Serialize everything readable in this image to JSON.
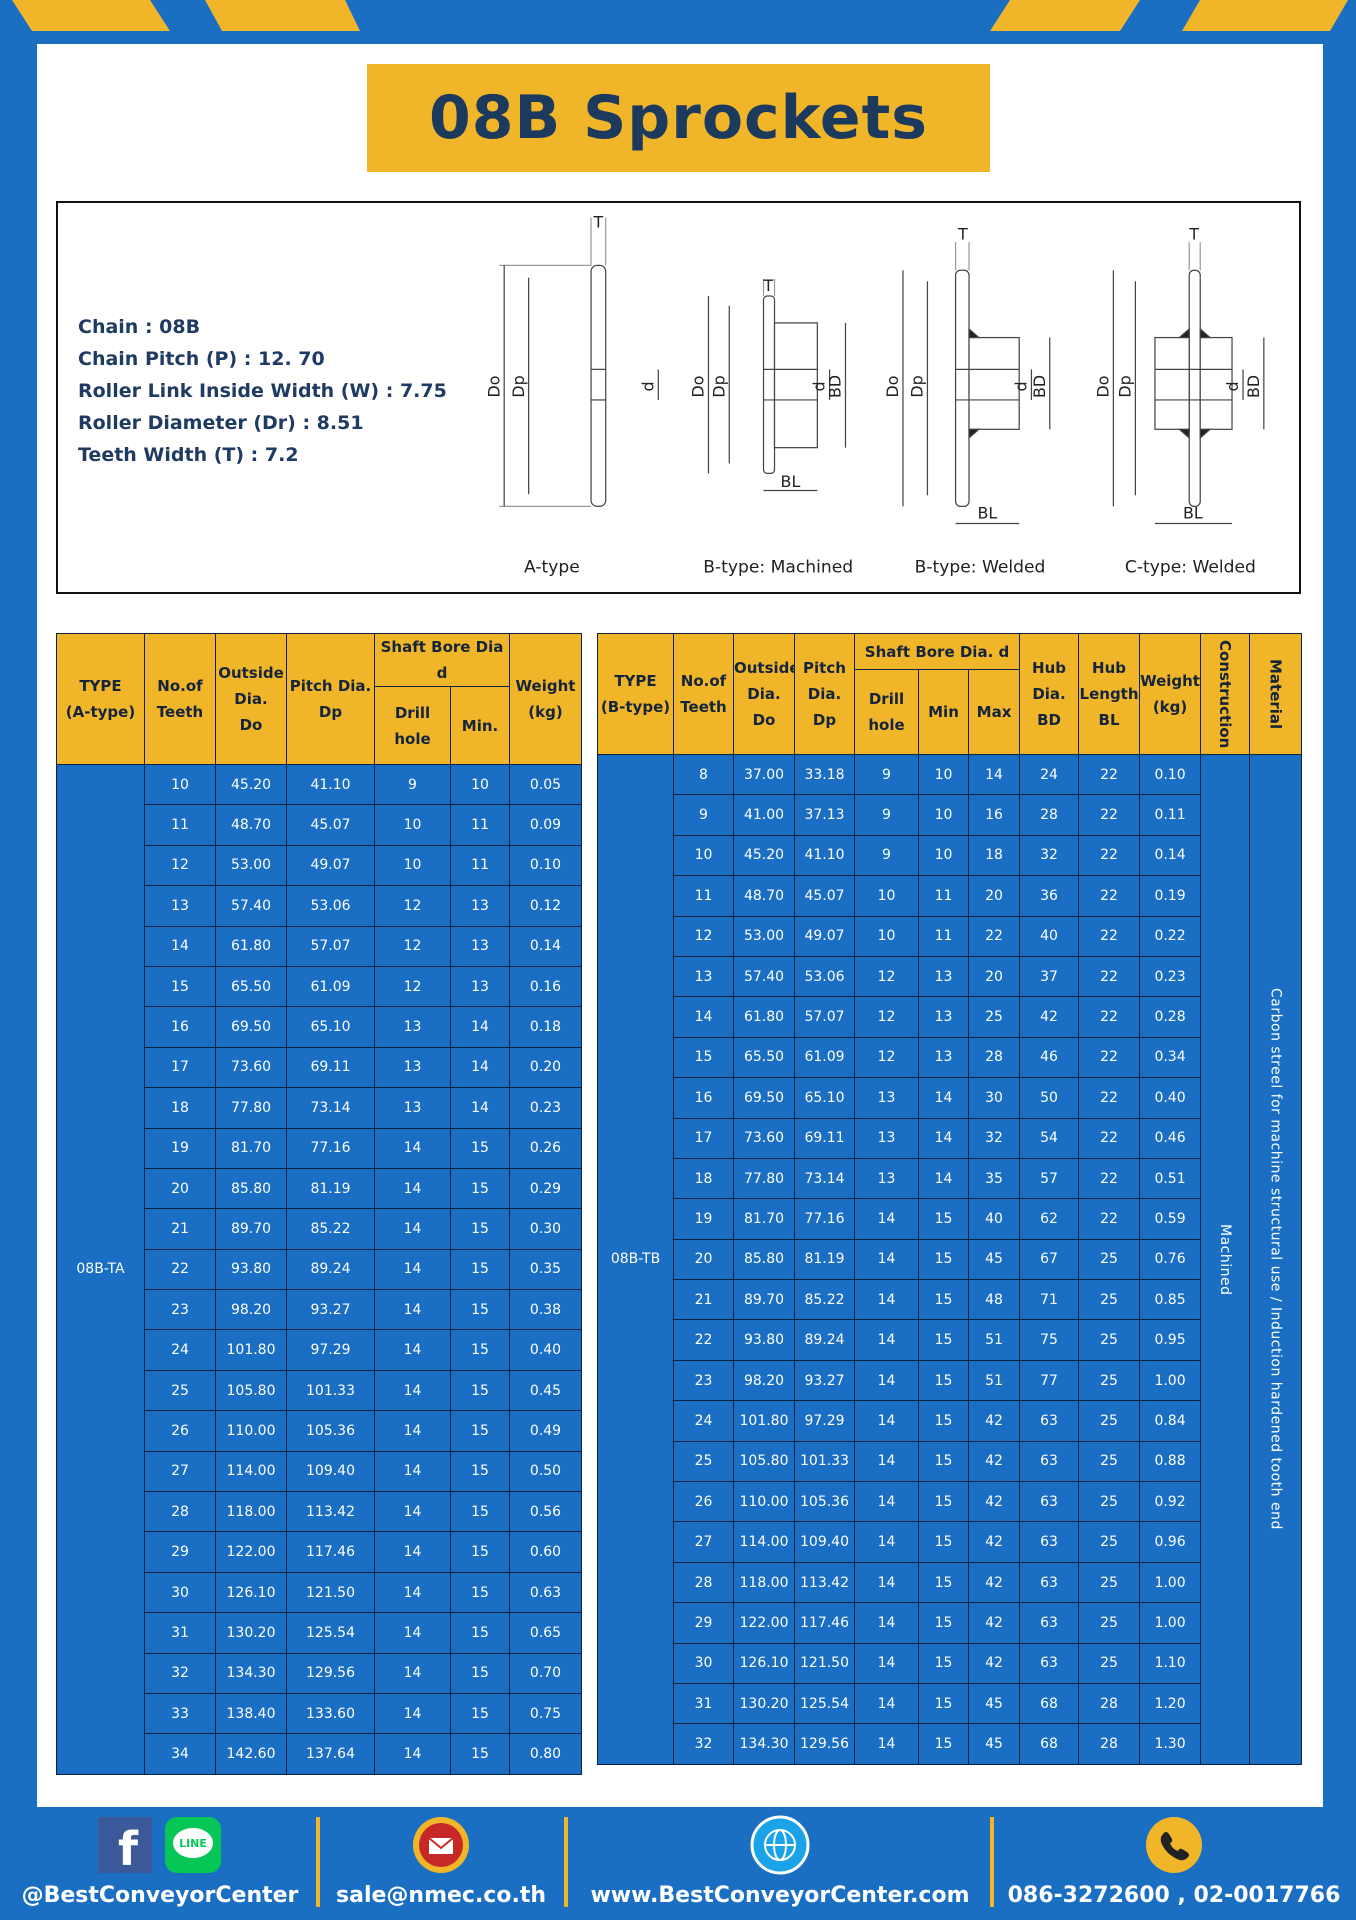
{
  "header": {
    "title": "08B Sprockets"
  },
  "specs": [
    {
      "label": "Chain",
      "value": "08B"
    },
    {
      "label": "Chain Pitch (P)",
      "value": "12. 70"
    },
    {
      "label": "Roller Link Inside Width (W)",
      "value": "7.75"
    },
    {
      "label": "Roller Diameter (Dr)",
      "value": "8.51"
    },
    {
      "label": "Teeth Width (T)",
      "value": "7.2"
    }
  ],
  "diagram": {
    "symbols": {
      "t": "T",
      "do": "Do",
      "dp": "Dp",
      "d": "d",
      "bd": "BD",
      "bl": "BL"
    },
    "captions": [
      "A-type",
      "B-type: Machined",
      "B-type: Welded",
      "C-type: Welded"
    ]
  },
  "table_a": {
    "columns": [
      [
        "TYPE",
        "(A-type)"
      ],
      [
        "No.of",
        "Teeth"
      ],
      [
        "Outside",
        "Dia.",
        "Do"
      ],
      [
        "Pitch Dia.",
        "Dp"
      ],
      [
        "Shaft Bore Dia d"
      ],
      [
        "Weight",
        "(kg)"
      ]
    ],
    "sub_columns": [
      "Drill hole",
      "Min."
    ],
    "type_label": "08B-TA",
    "rows": [
      [
        "10",
        "45.20",
        "41.10",
        "9",
        "10",
        "0.05"
      ],
      [
        "11",
        "48.70",
        "45.07",
        "10",
        "11",
        "0.09"
      ],
      [
        "12",
        "53.00",
        "49.07",
        "10",
        "11",
        "0.10"
      ],
      [
        "13",
        "57.40",
        "53.06",
        "12",
        "13",
        "0.12"
      ],
      [
        "14",
        "61.80",
        "57.07",
        "12",
        "13",
        "0.14"
      ],
      [
        "15",
        "65.50",
        "61.09",
        "12",
        "13",
        "0.16"
      ],
      [
        "16",
        "69.50",
        "65.10",
        "13",
        "14",
        "0.18"
      ],
      [
        "17",
        "73.60",
        "69.11",
        "13",
        "14",
        "0.20"
      ],
      [
        "18",
        "77.80",
        "73.14",
        "13",
        "14",
        "0.23"
      ],
      [
        "19",
        "81.70",
        "77.16",
        "14",
        "15",
        "0.26"
      ],
      [
        "20",
        "85.80",
        "81.19",
        "14",
        "15",
        "0.29"
      ],
      [
        "21",
        "89.70",
        "85.22",
        "14",
        "15",
        "0.30"
      ],
      [
        "22",
        "93.80",
        "89.24",
        "14",
        "15",
        "0.35"
      ],
      [
        "23",
        "98.20",
        "93.27",
        "14",
        "15",
        "0.38"
      ],
      [
        "24",
        "101.80",
        "97.29",
        "14",
        "15",
        "0.40"
      ],
      [
        "25",
        "105.80",
        "101.33",
        "14",
        "15",
        "0.45"
      ],
      [
        "26",
        "110.00",
        "105.36",
        "14",
        "15",
        "0.49"
      ],
      [
        "27",
        "114.00",
        "109.40",
        "14",
        "15",
        "0.50"
      ],
      [
        "28",
        "118.00",
        "113.42",
        "14",
        "15",
        "0.56"
      ],
      [
        "29",
        "122.00",
        "117.46",
        "14",
        "15",
        "0.60"
      ],
      [
        "30",
        "126.10",
        "121.50",
        "14",
        "15",
        "0.63"
      ],
      [
        "31",
        "130.20",
        "125.54",
        "14",
        "15",
        "0.65"
      ],
      [
        "32",
        "134.30",
        "129.56",
        "14",
        "15",
        "0.70"
      ],
      [
        "33",
        "138.40",
        "133.60",
        "14",
        "15",
        "0.75"
      ],
      [
        "34",
        "142.60",
        "137.64",
        "14",
        "15",
        "0.80"
      ]
    ]
  },
  "table_b": {
    "columns": [
      [
        "TYPE",
        "(B-type)"
      ],
      [
        "No.of",
        "Teeth"
      ],
      [
        "Outside",
        "Dia.",
        "Do"
      ],
      [
        "Pitch",
        "Dia.",
        "Dp"
      ],
      [
        "Shaft Bore Dia. d"
      ],
      [
        "Hub",
        "Dia.",
        "BD"
      ],
      [
        "Hub",
        "Length",
        "BL"
      ],
      [
        "Weight",
        "(kg)"
      ],
      [
        "Construction"
      ],
      [
        "Material"
      ]
    ],
    "sub_columns": [
      "Drill hole",
      "Min",
      "Max"
    ],
    "type_label": "08B-TB",
    "construction": "Machined",
    "material": "Carbon streel for machine structural use / Induction hardened tooth end",
    "rows": [
      [
        "8",
        "37.00",
        "33.18",
        "9",
        "10",
        "14",
        "24",
        "22",
        "0.10"
      ],
      [
        "9",
        "41.00",
        "37.13",
        "9",
        "10",
        "16",
        "28",
        "22",
        "0.11"
      ],
      [
        "10",
        "45.20",
        "41.10",
        "9",
        "10",
        "18",
        "32",
        "22",
        "0.14"
      ],
      [
        "11",
        "48.70",
        "45.07",
        "10",
        "11",
        "20",
        "36",
        "22",
        "0.19"
      ],
      [
        "12",
        "53.00",
        "49.07",
        "10",
        "11",
        "22",
        "40",
        "22",
        "0.22"
      ],
      [
        "13",
        "57.40",
        "53.06",
        "12",
        "13",
        "20",
        "37",
        "22",
        "0.23"
      ],
      [
        "14",
        "61.80",
        "57.07",
        "12",
        "13",
        "25",
        "42",
        "22",
        "0.28"
      ],
      [
        "15",
        "65.50",
        "61.09",
        "12",
        "13",
        "28",
        "46",
        "22",
        "0.34"
      ],
      [
        "16",
        "69.50",
        "65.10",
        "13",
        "14",
        "30",
        "50",
        "22",
        "0.40"
      ],
      [
        "17",
        "73.60",
        "69.11",
        "13",
        "14",
        "32",
        "54",
        "22",
        "0.46"
      ],
      [
        "18",
        "77.80",
        "73.14",
        "13",
        "14",
        "35",
        "57",
        "22",
        "0.51"
      ],
      [
        "19",
        "81.70",
        "77.16",
        "14",
        "15",
        "40",
        "62",
        "22",
        "0.59"
      ],
      [
        "20",
        "85.80",
        "81.19",
        "14",
        "15",
        "45",
        "67",
        "25",
        "0.76"
      ],
      [
        "21",
        "89.70",
        "85.22",
        "14",
        "15",
        "48",
        "71",
        "25",
        "0.85"
      ],
      [
        "22",
        "93.80",
        "89.24",
        "14",
        "15",
        "51",
        "75",
        "25",
        "0.95"
      ],
      [
        "23",
        "98.20",
        "93.27",
        "14",
        "15",
        "51",
        "77",
        "25",
        "1.00"
      ],
      [
        "24",
        "101.80",
        "97.29",
        "14",
        "15",
        "42",
        "63",
        "25",
        "0.84"
      ],
      [
        "25",
        "105.80",
        "101.33",
        "14",
        "15",
        "42",
        "63",
        "25",
        "0.88"
      ],
      [
        "26",
        "110.00",
        "105.36",
        "14",
        "15",
        "42",
        "63",
        "25",
        "0.92"
      ],
      [
        "27",
        "114.00",
        "109.40",
        "14",
        "15",
        "42",
        "63",
        "25",
        "0.96"
      ],
      [
        "28",
        "118.00",
        "113.42",
        "14",
        "15",
        "42",
        "63",
        "25",
        "1.00"
      ],
      [
        "29",
        "122.00",
        "117.46",
        "14",
        "15",
        "42",
        "63",
        "25",
        "1.00"
      ],
      [
        "30",
        "126.10",
        "121.50",
        "14",
        "15",
        "42",
        "63",
        "25",
        "1.10"
      ],
      [
        "31",
        "130.20",
        "125.54",
        "14",
        "15",
        "45",
        "68",
        "28",
        "1.20"
      ],
      [
        "32",
        "134.30",
        "129.56",
        "14",
        "15",
        "45",
        "68",
        "28",
        "1.30"
      ]
    ]
  },
  "footer": {
    "facebook_icon": "f",
    "line_icon": "LINE",
    "social": "@BestConveyorCenter",
    "email": "sale@nmec.co.th",
    "website": "www.BestConveyorCenter.com",
    "phone": "086-3272600 , 02-0017766"
  }
}
